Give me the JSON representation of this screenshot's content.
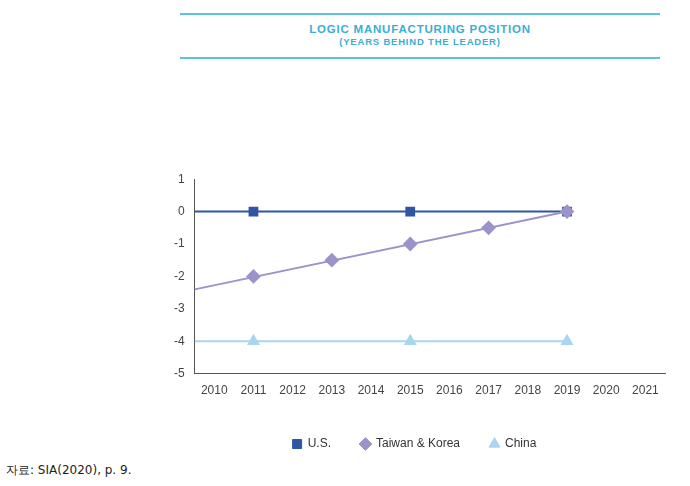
{
  "chart_data": {
    "type": "line",
    "title": "LOGIC MANUFACTURING POSITION",
    "subtitle": "(YEARS BEHIND THE LEADER)",
    "source": "자료: SIA(2020), p. 9.",
    "xlim": [
      2009.5,
      2021.5
    ],
    "xticks": [
      2010,
      2011,
      2012,
      2013,
      2014,
      2015,
      2016,
      2017,
      2018,
      2019,
      2020,
      2021
    ],
    "ylim": [
      -5,
      1
    ],
    "yticks": [
      -5,
      -4,
      -3,
      -2,
      -1,
      0,
      1
    ],
    "grid": false,
    "legend": "bottom",
    "series": [
      {
        "type": "line",
        "color": "#2e56a3",
        "marker": "none",
        "x": [
          2009.5,
          2019
        ],
        "values": [
          0,
          0
        ]
      },
      {
        "type": "line",
        "color": "#9d93c9",
        "marker": "none",
        "x": [
          2009.5,
          2019
        ],
        "values": [
          -2.4,
          0
        ]
      },
      {
        "type": "line",
        "color": "#a9d5ef",
        "marker": "none",
        "x": [
          2009.5,
          2019
        ],
        "values": [
          -4,
          -4
        ]
      },
      {
        "name": "U.S.",
        "type": "scatter",
        "color": "#2e56a3",
        "marker": "square",
        "x": [
          2011,
          2015,
          2019
        ],
        "values": [
          0,
          0,
          0
        ]
      },
      {
        "name": "Taiwan & Korea",
        "type": "scatter",
        "color": "#9d93c9",
        "marker": "diamond",
        "x": [
          2011,
          2013,
          2015,
          2017,
          2019
        ],
        "values": [
          -2,
          -1.5,
          -1,
          -0.5,
          0
        ]
      },
      {
        "name": "China",
        "type": "scatter",
        "color": "#a9d5ef",
        "marker": "triangle",
        "x": [
          2011,
          2015,
          2019
        ],
        "values": [
          -4,
          -4,
          -4
        ]
      }
    ]
  }
}
